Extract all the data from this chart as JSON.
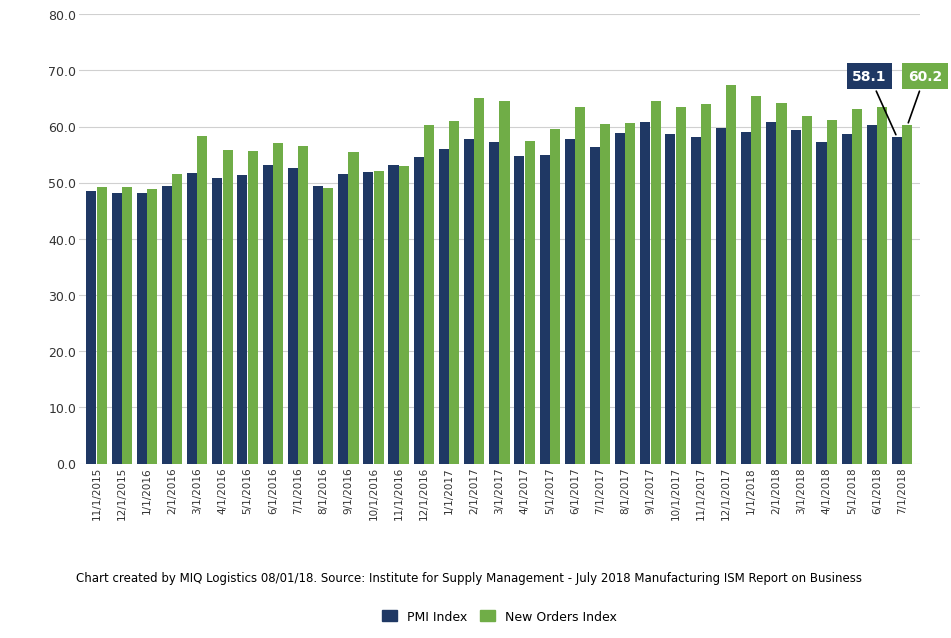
{
  "categories": [
    "11/1/2015",
    "12/1/2015",
    "1/1/2016",
    "2/1/2016",
    "3/1/2016",
    "4/1/2016",
    "5/1/2016",
    "6/1/2016",
    "7/1/2016",
    "8/1/2016",
    "9/1/2016",
    "10/1/2016",
    "11/1/2016",
    "12/1/2016",
    "1/1/2017",
    "2/1/2017",
    "3/1/2017",
    "4/1/2017",
    "5/1/2017",
    "6/1/2017",
    "7/1/2017",
    "8/1/2017",
    "9/1/2017",
    "10/1/2017",
    "11/1/2017",
    "12/1/2017",
    "1/1/2018",
    "2/1/2018",
    "3/1/2018",
    "4/1/2018",
    "5/1/2018",
    "6/1/2018",
    "7/1/2018"
  ],
  "pmi": [
    48.6,
    48.2,
    48.2,
    49.5,
    51.8,
    50.8,
    51.3,
    53.2,
    52.6,
    49.4,
    51.5,
    51.9,
    53.2,
    54.5,
    56.0,
    57.7,
    57.2,
    54.8,
    54.9,
    57.8,
    56.3,
    58.8,
    60.8,
    58.7,
    58.2,
    59.7,
    59.1,
    60.8,
    59.3,
    57.3,
    58.7,
    60.2,
    58.1
  ],
  "new_orders": [
    49.2,
    49.2,
    48.8,
    51.5,
    58.3,
    55.8,
    55.7,
    57.0,
    56.6,
    49.1,
    55.4,
    52.1,
    53.0,
    60.2,
    61.0,
    65.1,
    64.5,
    57.5,
    59.5,
    63.5,
    60.4,
    60.6,
    64.6,
    63.4,
    64.0,
    67.4,
    65.4,
    64.2,
    61.9,
    61.2,
    63.2,
    63.5,
    60.2
  ],
  "pmi_color": "#1f3864",
  "new_orders_color": "#70ad47",
  "background_color": "#ffffff",
  "plot_bg_color": "#ffffff",
  "footer_bg_color": "#70ad47",
  "footer_text": "Chart created by MIQ Logistics 08/01/18. Source: Institute for Supply Management - July 2018 Manufacturing ISM Report on Business",
  "footer_text_color": "#000000",
  "ylim": [
    0.0,
    80.0
  ],
  "yticks": [
    0.0,
    10.0,
    20.0,
    30.0,
    40.0,
    50.0,
    60.0,
    70.0,
    80.0
  ],
  "last_pmi_label": "58.1",
  "last_new_orders_label": "60.2",
  "pmi_label_bg": "#1f3864",
  "new_orders_label_bg": "#70ad47",
  "label_text_color": "#ffffff",
  "grid_color": "#d0d0d0"
}
